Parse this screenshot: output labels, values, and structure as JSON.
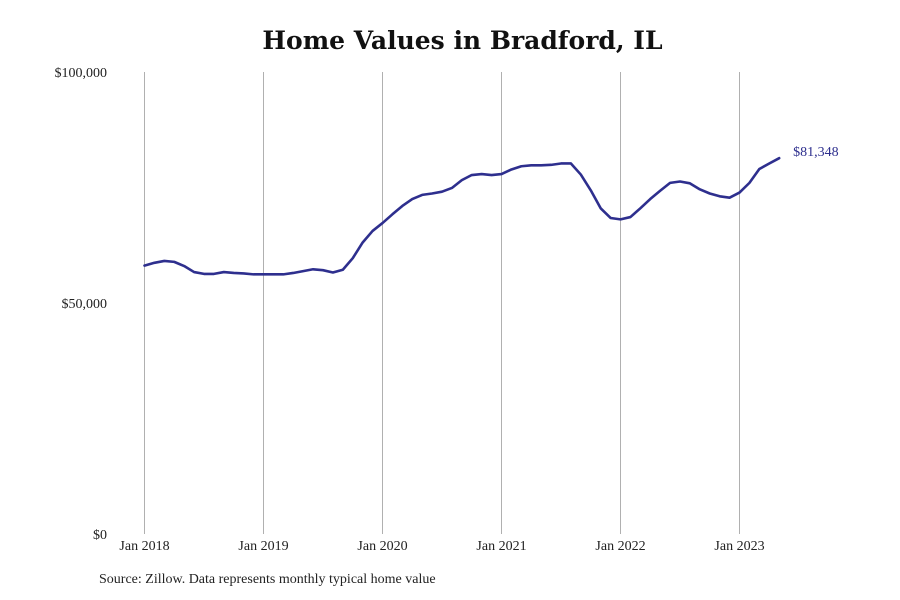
{
  "chart_data": {
    "type": "line",
    "title": "Home Values in Bradford, IL",
    "xlabel": "",
    "ylabel": "",
    "ylim": [
      0,
      100000
    ],
    "y_ticks": [
      {
        "value": 0,
        "label": "$0"
      },
      {
        "value": 50000,
        "label": "$50,000"
      },
      {
        "value": 100000,
        "label": "$100,000"
      }
    ],
    "x_ticks": [
      {
        "value": "2018-01",
        "label": "Jan 2018"
      },
      {
        "value": "2019-01",
        "label": "Jan 2019"
      },
      {
        "value": "2020-01",
        "label": "Jan 2020"
      },
      {
        "value": "2021-01",
        "label": "Jan 2021"
      },
      {
        "value": "2022-01",
        "label": "Jan 2022"
      },
      {
        "value": "2023-01",
        "label": "Jan 2023"
      }
    ],
    "grid": "vertical lines at x ticks",
    "line_color": "#2e2f8e",
    "grid_color": "#b0b0b0",
    "series": [
      {
        "x": [
          "2018-01",
          "2018-02",
          "2018-03",
          "2018-04",
          "2018-05",
          "2018-06",
          "2018-07",
          "2018-08",
          "2018-09",
          "2018-10",
          "2018-11",
          "2018-12",
          "2019-01",
          "2019-02",
          "2019-03",
          "2019-04",
          "2019-05",
          "2019-06",
          "2019-07",
          "2019-08",
          "2019-09",
          "2019-10",
          "2019-11",
          "2019-12",
          "2020-01",
          "2020-02",
          "2020-03",
          "2020-04",
          "2020-05",
          "2020-06",
          "2020-07",
          "2020-08",
          "2020-09",
          "2020-10",
          "2020-11",
          "2020-12",
          "2021-01",
          "2021-02",
          "2021-03",
          "2021-04",
          "2021-05",
          "2021-06",
          "2021-07",
          "2021-08",
          "2021-09",
          "2021-10",
          "2021-11",
          "2021-12",
          "2022-01",
          "2022-02",
          "2022-03",
          "2022-04",
          "2022-05",
          "2022-06",
          "2022-07",
          "2022-08",
          "2022-09",
          "2022-10",
          "2022-11",
          "2022-12",
          "2023-01",
          "2023-02",
          "2023-03",
          "2023-04",
          "2023-05"
        ],
        "values": [
          58100,
          58700,
          59100,
          58900,
          58000,
          56700,
          56300,
          56300,
          56700,
          56500,
          56400,
          56200,
          56200,
          56200,
          56200,
          56500,
          56900,
          57300,
          57100,
          56600,
          57200,
          59700,
          63100,
          65600,
          67300,
          69200,
          71000,
          72500,
          73400,
          73700,
          74100,
          74900,
          76600,
          77700,
          77900,
          77700,
          77900,
          78900,
          79600,
          79800,
          79800,
          79900,
          80200,
          80200,
          77800,
          74400,
          70500,
          68400,
          68100,
          68600,
          70500,
          72500,
          74300,
          76000,
          76300,
          75900,
          74600,
          73700,
          73100,
          72800,
          73900,
          76000,
          79000,
          80200,
          81348
        ]
      }
    ],
    "end_label": "$81,348"
  },
  "footer": {
    "source": "Source: Zillow. Data represents monthly typical home value"
  }
}
